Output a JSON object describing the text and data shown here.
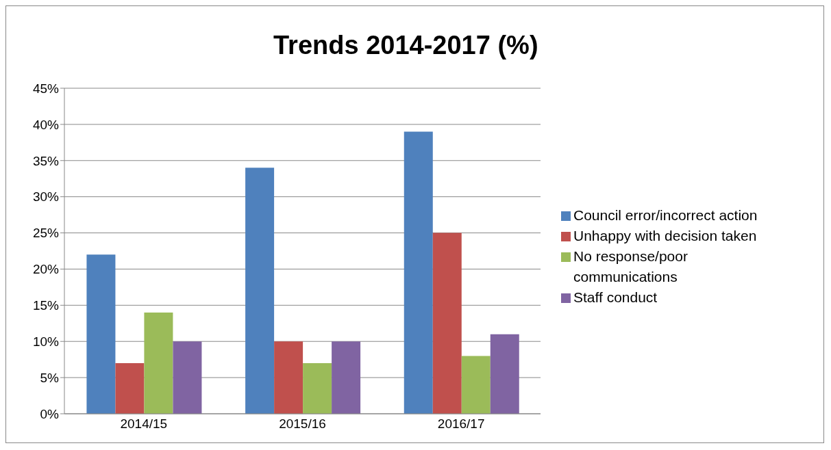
{
  "chart_data": {
    "type": "bar",
    "title": "Trends 2014-2017 (%)",
    "categories": [
      "2014/15",
      "2015/16",
      "2016/17"
    ],
    "series": [
      {
        "name": "Council error/incorrect action",
        "color": "#4f81bd",
        "values": [
          22,
          34,
          39
        ]
      },
      {
        "name": "Unhappy with decision taken",
        "color": "#c0504d",
        "values": [
          7,
          10,
          25
        ]
      },
      {
        "name": "No response/poor communications",
        "color": "#9bbb59",
        "values": [
          14,
          7,
          8
        ]
      },
      {
        "name": "Staff conduct",
        "color": "#8064a2",
        "values": [
          10,
          10,
          11
        ]
      }
    ],
    "ylim": [
      0,
      45
    ],
    "yticks": [
      {
        "value": 0,
        "label": "0%"
      },
      {
        "value": 5,
        "label": "5%"
      },
      {
        "value": 10,
        "label": "10%"
      },
      {
        "value": 15,
        "label": "15%"
      },
      {
        "value": 20,
        "label": "20%"
      },
      {
        "value": 25,
        "label": "25%"
      },
      {
        "value": 30,
        "label": "30%"
      },
      {
        "value": 35,
        "label": "35%"
      },
      {
        "value": 40,
        "label": "40%"
      },
      {
        "value": 45,
        "label": "45%"
      }
    ],
    "grid": "y",
    "legend": "right"
  }
}
